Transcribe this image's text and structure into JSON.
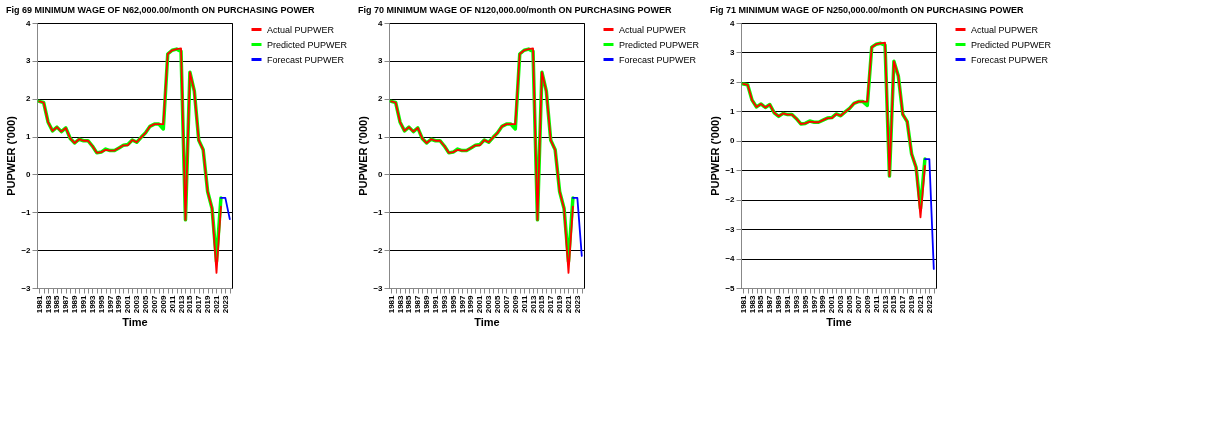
{
  "chart_data": [
    {
      "type": "line",
      "title": "Fig 69  MINIMUM WAGE OF N62,000.00/month ON PURCHASING POWER",
      "xlabel": "Time",
      "ylabel": "PUPWER ('000)",
      "categories": [
        "1981",
        null,
        "1983",
        null,
        "1985",
        null,
        "1987",
        null,
        "1989",
        null,
        "1991",
        null,
        "1993",
        null,
        "1995",
        null,
        "1997",
        null,
        "1999",
        null,
        "2001",
        null,
        "2003",
        null,
        "2005",
        null,
        "2007",
        null,
        "2009",
        null,
        "2011",
        null,
        "2013",
        null,
        "2015",
        null,
        "2017",
        null,
        "2019",
        null,
        "2021",
        null,
        "2023",
        null
      ],
      "ylim": [
        -3,
        4
      ],
      "yticks": [
        -3,
        -2,
        -1,
        0,
        1,
        2,
        3,
        4
      ],
      "grid": "y",
      "legend": "right",
      "series": [
        {
          "name": "Actual PUPWER",
          "color": "#ff0000",
          "values": [
            1.93,
            1.9,
            1.38,
            1.15,
            1.25,
            1.13,
            1.23,
            0.95,
            0.83,
            0.93,
            0.89,
            0.89,
            0.75,
            0.57,
            0.59,
            0.65,
            0.63,
            0.63,
            0.7,
            0.77,
            0.77,
            0.91,
            0.85,
            0.98,
            1.1,
            1.27,
            1.33,
            1.33,
            1.33,
            3.18,
            3.28,
            3.31,
            3.33,
            -1.2,
            2.7,
            2.2,
            0.9,
            0.65,
            -0.45,
            -0.9,
            -2.6,
            -0.85,
            null,
            null
          ]
        },
        {
          "name": "Predicted PUPWER",
          "color": "#00ff00",
          "values": [
            1.93,
            1.9,
            1.38,
            1.15,
            1.25,
            1.13,
            1.23,
            0.95,
            0.83,
            0.93,
            0.89,
            0.89,
            0.75,
            0.57,
            0.59,
            0.67,
            0.63,
            0.63,
            0.7,
            0.77,
            0.79,
            0.91,
            0.85,
            0.98,
            1.1,
            1.27,
            1.33,
            1.33,
            1.2,
            3.18,
            3.28,
            3.31,
            3.25,
            -1.2,
            2.7,
            2.2,
            0.9,
            0.65,
            -0.45,
            -0.9,
            -2.3,
            -0.62,
            null,
            null
          ]
        },
        {
          "name": "Forecast PUPWER",
          "color": "#0000ff",
          "values": [
            null,
            null,
            null,
            null,
            null,
            null,
            null,
            null,
            null,
            null,
            null,
            null,
            null,
            null,
            null,
            null,
            null,
            null,
            null,
            null,
            null,
            null,
            null,
            null,
            null,
            null,
            null,
            null,
            null,
            null,
            null,
            null,
            null,
            null,
            null,
            null,
            null,
            null,
            null,
            null,
            null,
            -0.62,
            -0.62,
            -1.18
          ]
        }
      ]
    },
    {
      "type": "line",
      "title": "Fig 70  MINIMUM WAGE OF N120,000.00/month ON PURCHASING POWER",
      "xlabel": "Time",
      "ylabel": "PUPWER ('000)",
      "categories": [
        "1981",
        null,
        "1983",
        null,
        "1985",
        null,
        "1987",
        null,
        "1989",
        null,
        "1991",
        null,
        "1993",
        null,
        "1995",
        null,
        "1997",
        null,
        "1999",
        null,
        "2001",
        null,
        "2003",
        null,
        "2005",
        null,
        "2007",
        null,
        "2009",
        null,
        "2011",
        null,
        "2013",
        null,
        "2015",
        null,
        "2017",
        null,
        "2019",
        null,
        "2021",
        null,
        "2023",
        null
      ],
      "ylim": [
        -3,
        4
      ],
      "yticks": [
        -3,
        -2,
        -1,
        0,
        1,
        2,
        3,
        4
      ],
      "grid": "y",
      "legend": "right",
      "series": [
        {
          "name": "Actual PUPWER",
          "color": "#ff0000",
          "values": [
            1.93,
            1.9,
            1.38,
            1.15,
            1.25,
            1.13,
            1.23,
            0.95,
            0.83,
            0.93,
            0.89,
            0.89,
            0.75,
            0.57,
            0.59,
            0.65,
            0.63,
            0.63,
            0.7,
            0.77,
            0.77,
            0.91,
            0.85,
            0.98,
            1.1,
            1.27,
            1.33,
            1.33,
            1.33,
            3.18,
            3.28,
            3.31,
            3.33,
            -1.2,
            2.7,
            2.2,
            0.9,
            0.65,
            -0.45,
            -0.9,
            -2.6,
            -0.85,
            null,
            null
          ]
        },
        {
          "name": "Predicted PUPWER",
          "color": "#00ff00",
          "values": [
            1.93,
            1.9,
            1.38,
            1.15,
            1.25,
            1.13,
            1.23,
            0.95,
            0.83,
            0.93,
            0.89,
            0.89,
            0.75,
            0.57,
            0.59,
            0.67,
            0.63,
            0.63,
            0.7,
            0.77,
            0.79,
            0.91,
            0.85,
            0.98,
            1.1,
            1.27,
            1.33,
            1.33,
            1.2,
            3.18,
            3.28,
            3.31,
            3.25,
            -1.2,
            2.7,
            2.2,
            0.9,
            0.65,
            -0.45,
            -0.9,
            -2.3,
            -0.62,
            null,
            null
          ]
        },
        {
          "name": "Forecast PUPWER",
          "color": "#0000ff",
          "values": [
            null,
            null,
            null,
            null,
            null,
            null,
            null,
            null,
            null,
            null,
            null,
            null,
            null,
            null,
            null,
            null,
            null,
            null,
            null,
            null,
            null,
            null,
            null,
            null,
            null,
            null,
            null,
            null,
            null,
            null,
            null,
            null,
            null,
            null,
            null,
            null,
            null,
            null,
            null,
            null,
            null,
            -0.62,
            -0.62,
            -2.15
          ]
        }
      ]
    },
    {
      "type": "line",
      "title": "Fig 71  MINIMUM WAGE OF N250,000.00/month ON PURCHASING POWER",
      "xlabel": "Time",
      "ylabel": "PUPWER ('000)",
      "categories": [
        "1981",
        null,
        "1983",
        null,
        "1985",
        null,
        "1987",
        null,
        "1989",
        null,
        "1991",
        null,
        "1993",
        null,
        "1995",
        null,
        "1997",
        null,
        "1999",
        null,
        "2001",
        null,
        "2003",
        null,
        "2005",
        null,
        "2007",
        null,
        "2009",
        null,
        "2011",
        null,
        "2013",
        null,
        "2015",
        null,
        "2017",
        null,
        "2019",
        null,
        "2021",
        null,
        "2023",
        null
      ],
      "ylim": [
        -5,
        4
      ],
      "yticks": [
        -5,
        -4,
        -3,
        -2,
        -1,
        0,
        1,
        2,
        3,
        4
      ],
      "grid": "y",
      "legend": "right",
      "series": [
        {
          "name": "Actual PUPWER",
          "color": "#ff0000",
          "values": [
            1.93,
            1.9,
            1.38,
            1.15,
            1.25,
            1.13,
            1.23,
            0.95,
            0.83,
            0.93,
            0.89,
            0.89,
            0.75,
            0.57,
            0.59,
            0.65,
            0.63,
            0.63,
            0.7,
            0.77,
            0.77,
            0.91,
            0.85,
            0.98,
            1.1,
            1.27,
            1.33,
            1.33,
            1.33,
            3.18,
            3.28,
            3.31,
            3.33,
            -1.2,
            2.7,
            2.2,
            0.9,
            0.65,
            -0.45,
            -0.9,
            -2.6,
            -0.85,
            null,
            null
          ]
        },
        {
          "name": "Predicted PUPWER",
          "color": "#00ff00",
          "values": [
            1.93,
            1.9,
            1.38,
            1.15,
            1.25,
            1.13,
            1.23,
            0.95,
            0.83,
            0.93,
            0.89,
            0.89,
            0.75,
            0.57,
            0.59,
            0.67,
            0.63,
            0.63,
            0.7,
            0.77,
            0.79,
            0.91,
            0.85,
            0.98,
            1.1,
            1.27,
            1.33,
            1.33,
            1.2,
            3.18,
            3.28,
            3.31,
            3.25,
            -1.2,
            2.7,
            2.2,
            0.9,
            0.65,
            -0.45,
            -0.9,
            -2.3,
            -0.62,
            null,
            null
          ]
        },
        {
          "name": "Forecast PUPWER",
          "color": "#0000ff",
          "values": [
            null,
            null,
            null,
            null,
            null,
            null,
            null,
            null,
            null,
            null,
            null,
            null,
            null,
            null,
            null,
            null,
            null,
            null,
            null,
            null,
            null,
            null,
            null,
            null,
            null,
            null,
            null,
            null,
            null,
            null,
            null,
            null,
            null,
            null,
            null,
            null,
            null,
            null,
            null,
            null,
            null,
            -0.62,
            -0.62,
            -4.35
          ]
        }
      ]
    }
  ]
}
